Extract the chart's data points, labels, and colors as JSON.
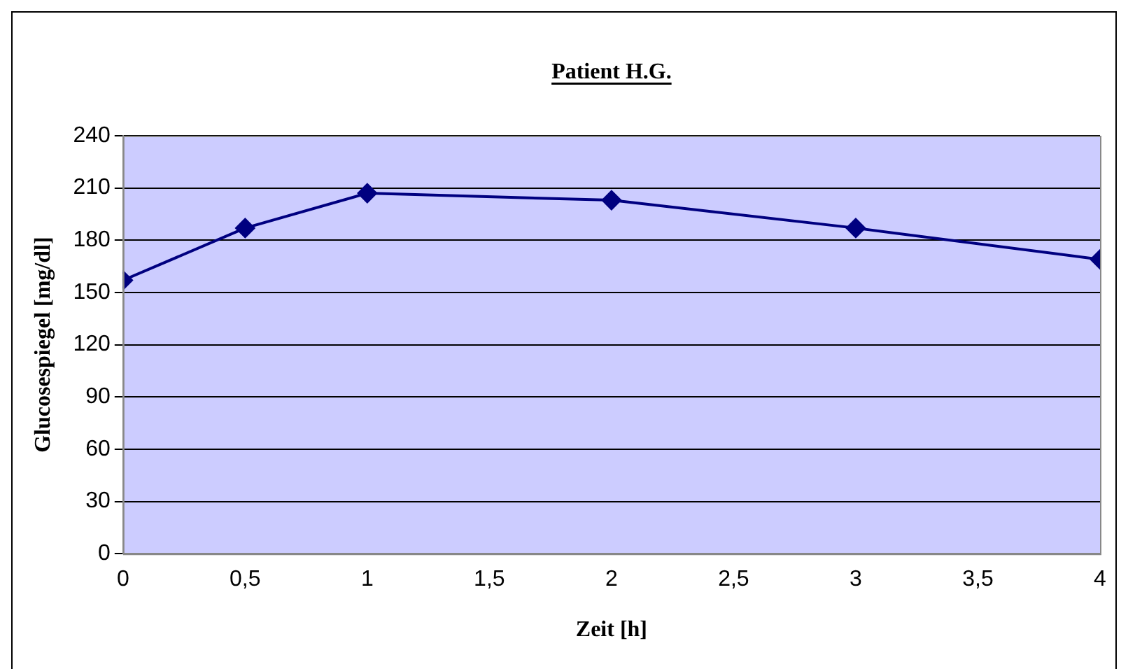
{
  "chart_data": {
    "type": "line",
    "title": "Patient H.G.",
    "xlabel": "Zeit [h]",
    "ylabel": "Glucosespiegel [mg/dl]",
    "x": [
      0,
      0.5,
      1,
      2,
      3,
      4
    ],
    "series": [
      {
        "color": "#000080",
        "values": [
          157,
          187,
          207,
          203,
          187,
          169
        ]
      }
    ],
    "xlim": [
      0,
      4
    ],
    "xticks": [
      0,
      {
        "value": 0.5,
        "label": "0,5"
      },
      1,
      {
        "value": 1.5,
        "label": "1,5"
      },
      2,
      {
        "value": 2.5,
        "label": "2,5"
      },
      3,
      {
        "value": 3.5,
        "label": "3,5"
      },
      4
    ],
    "ylim": [
      0,
      240
    ],
    "yticks": [
      0,
      30,
      60,
      90,
      120,
      150,
      180,
      210,
      240
    ],
    "grid": "y",
    "marker": "diamond",
    "line_style": "solid",
    "legend": false
  }
}
